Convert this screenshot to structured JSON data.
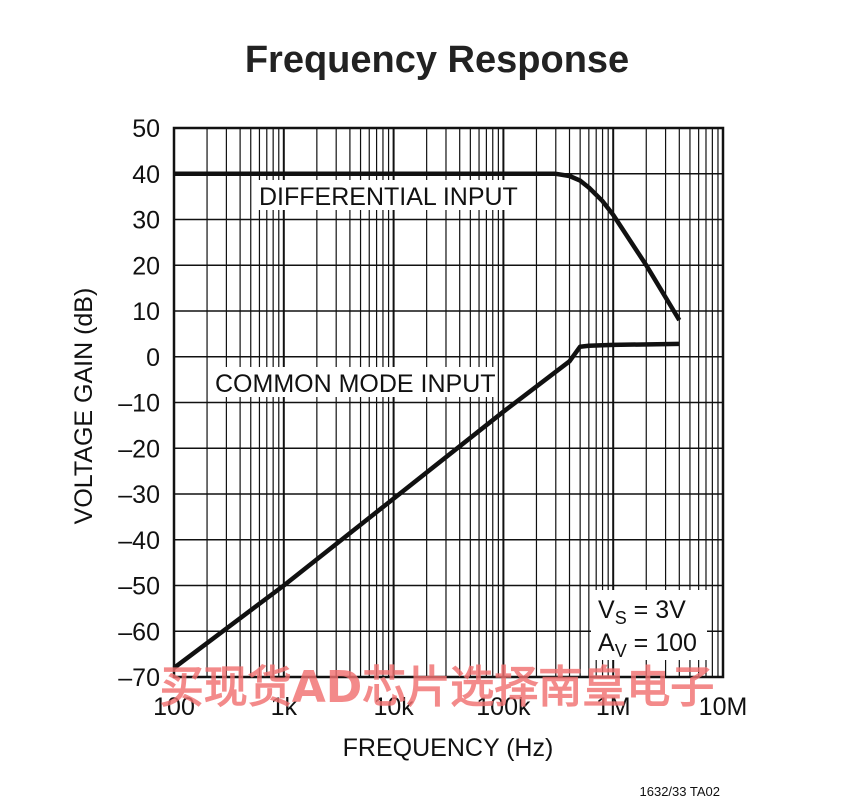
{
  "chart_data": {
    "type": "line",
    "title": "Frequency Response",
    "xlabel": "FREQUENCY (Hz)",
    "ylabel": "VOLTAGE GAIN (dB)",
    "xscale": "log",
    "xlim": [
      100,
      10000000
    ],
    "ylim": [
      -70,
      50
    ],
    "grid": true,
    "x_ticks": [
      {
        "value": 100,
        "label": "100"
      },
      {
        "value": 1000,
        "label": "1k"
      },
      {
        "value": 10000,
        "label": "10k"
      },
      {
        "value": 100000,
        "label": "100k"
      },
      {
        "value": 1000000,
        "label": "1M"
      },
      {
        "value": 10000000,
        "label": "10M"
      }
    ],
    "y_ticks": [
      {
        "value": 50,
        "label": "50"
      },
      {
        "value": 40,
        "label": "40"
      },
      {
        "value": 30,
        "label": "30"
      },
      {
        "value": 20,
        "label": "20"
      },
      {
        "value": 10,
        "label": "10"
      },
      {
        "value": 0,
        "label": "0"
      },
      {
        "value": -10,
        "label": "–10"
      },
      {
        "value": -20,
        "label": "–20"
      },
      {
        "value": -30,
        "label": "–30"
      },
      {
        "value": -40,
        "label": "–40"
      },
      {
        "value": -50,
        "label": "–50"
      },
      {
        "value": -60,
        "label": "–60"
      },
      {
        "value": -70,
        "label": "–70"
      }
    ],
    "series": [
      {
        "name": "DIFFERENTIAL INPUT",
        "points": [
          [
            100,
            40
          ],
          [
            300000,
            40
          ],
          [
            400000,
            39.5
          ],
          [
            500000,
            38.5
          ],
          [
            600000,
            37
          ],
          [
            800000,
            34
          ],
          [
            1000000,
            31
          ],
          [
            2000000,
            20
          ],
          [
            4000000,
            8
          ]
        ]
      },
      {
        "name": "COMMON MODE INPUT",
        "points": [
          [
            100,
            -68
          ],
          [
            1000,
            -50
          ],
          [
            10000,
            -31
          ],
          [
            100000,
            -12
          ],
          [
            400000,
            -1
          ],
          [
            500000,
            2.2
          ],
          [
            600000,
            2.4
          ],
          [
            1000000,
            2.6
          ],
          [
            4000000,
            2.8
          ]
        ]
      }
    ],
    "annotations": {
      "condition_vs_base": "V",
      "condition_vs_sub": "S",
      "condition_vs_rest": " = 3V",
      "condition_av_base": "A",
      "condition_av_sub": "V",
      "condition_av_rest": " = 100",
      "figure_id": "1632/33 TA02"
    }
  },
  "watermark": {
    "text": "买现货AD芯片选择南皇电子",
    "color": "#f07070"
  }
}
